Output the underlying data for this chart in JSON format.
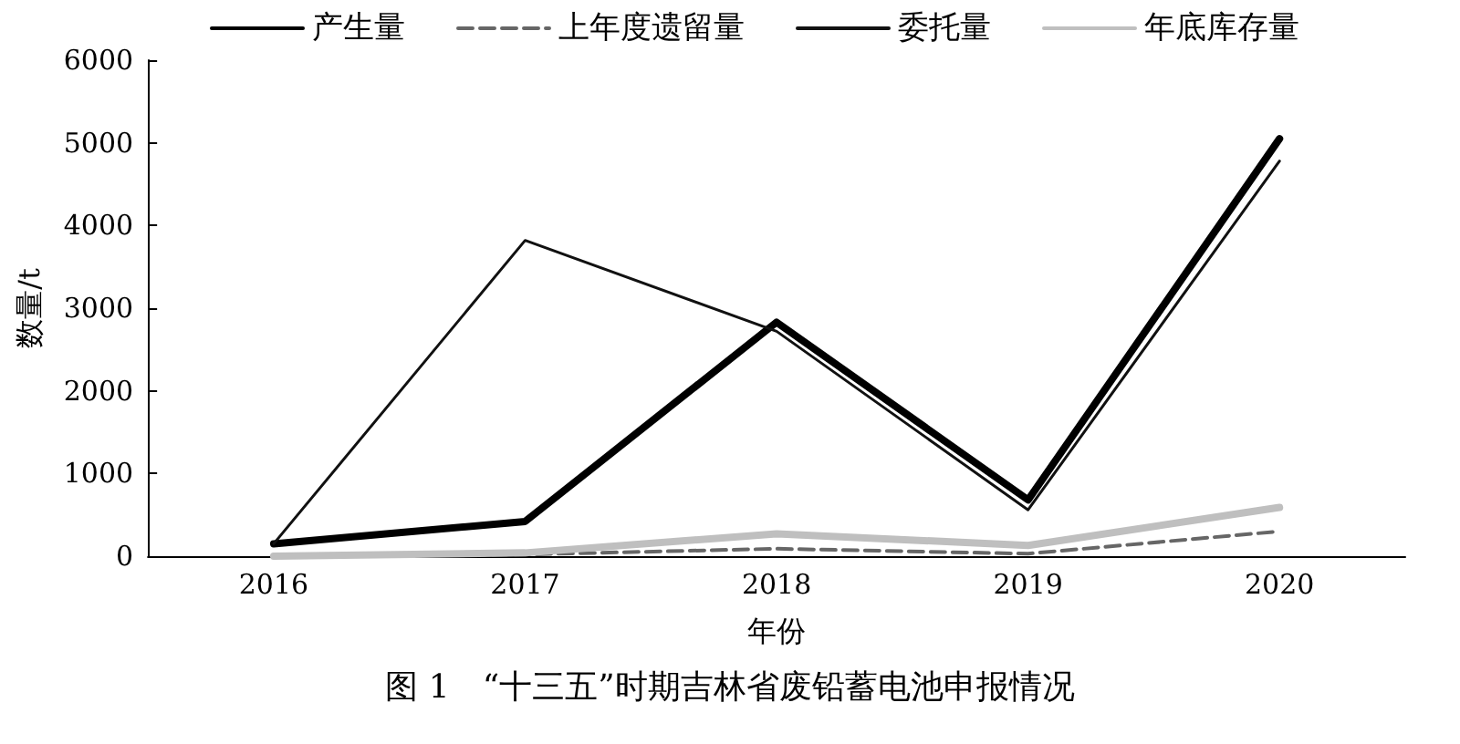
{
  "chart_data": {
    "type": "line",
    "xlabel": "年份",
    "ylabel": "数量/t",
    "categories": [
      "2016",
      "2017",
      "2018",
      "2019",
      "2020"
    ],
    "series": [
      {
        "name": "产生量",
        "color": "#000000",
        "values": [
          150,
          420,
          2830,
          680,
          5050
        ],
        "line_style": "solid"
      },
      {
        "name": "上年度遗留量",
        "color": "#666666",
        "values": [
          0,
          20,
          90,
          30,
          300
        ],
        "line_style": "dashed"
      },
      {
        "name": "委托量",
        "color": "#111111",
        "values": [
          150,
          3820,
          2720,
          560,
          4780
        ],
        "line_style": "solid"
      },
      {
        "name": "年底库存量",
        "color": "#bfbfbf",
        "values": [
          0,
          40,
          270,
          130,
          590
        ],
        "line_style": "solid"
      }
    ],
    "ylim": [
      0,
      6000
    ],
    "yticks": [
      0,
      1000,
      2000,
      3000,
      4000,
      5000,
      6000
    ],
    "grid": false,
    "legend": "top",
    "marker": "none",
    "annotations": [
      "图 1　“十三五”时期吉林省废铅蓄电池申报情况"
    ]
  }
}
